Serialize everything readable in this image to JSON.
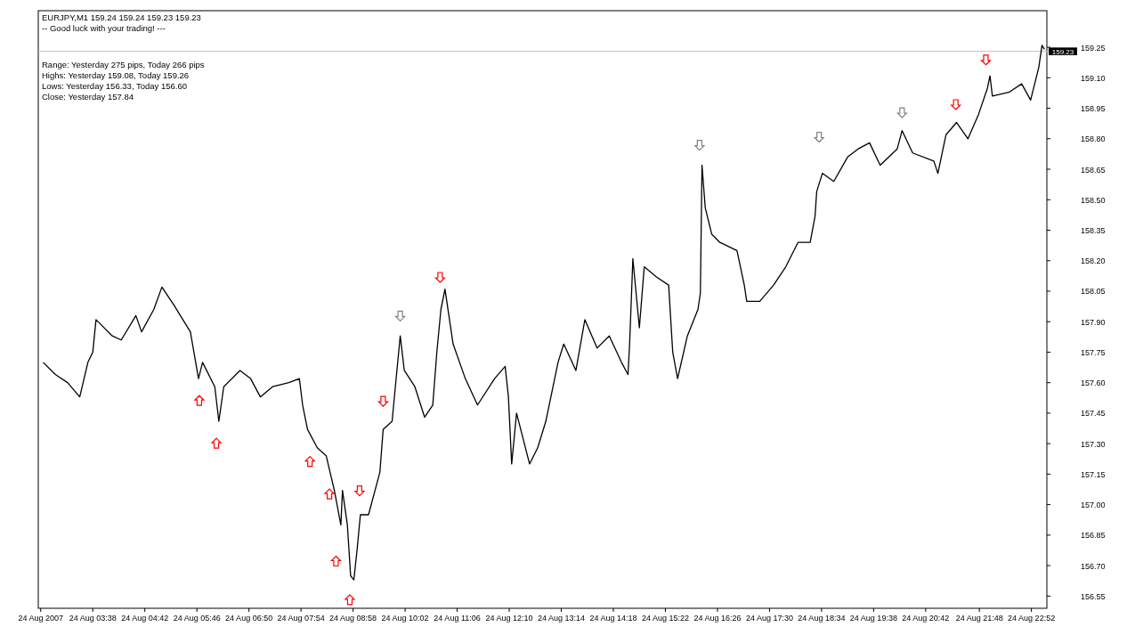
{
  "chart_data": {
    "type": "line",
    "title": "EURJPY,M1  159.24 159.24 159.23 159.23",
    "annotations": [
      "-- Good luck with your trading! ---",
      "Range: Yesterday 275 pips, Today 266 pips",
      "Highs: Yesterday 159.08, Today 159.26",
      "Lows:  Yesterday 156.33, Today 156.60",
      "Close: Yesterday 157.84"
    ],
    "xlim": [
      "2007-08-24T02:31",
      "2007-08-24T23:11"
    ],
    "ylim": [
      156.49,
      159.43
    ],
    "xticks": [
      {
        "value": "2007-08-24T02:34",
        "label": "24 Aug 2007"
      },
      {
        "value": "2007-08-24T03:38",
        "label": "24 Aug 03:38"
      },
      {
        "value": "2007-08-24T04:42",
        "label": "24 Aug 04:42"
      },
      {
        "value": "2007-08-24T05:46",
        "label": "24 Aug 05:46"
      },
      {
        "value": "2007-08-24T06:50",
        "label": "24 Aug 06:50"
      },
      {
        "value": "2007-08-24T07:54",
        "label": "24 Aug 07:54"
      },
      {
        "value": "2007-08-24T08:58",
        "label": "24 Aug 08:58"
      },
      {
        "value": "2007-08-24T10:02",
        "label": "24 Aug 10:02"
      },
      {
        "value": "2007-08-24T11:06",
        "label": "24 Aug 11:06"
      },
      {
        "value": "2007-08-24T12:10",
        "label": "24 Aug 12:10"
      },
      {
        "value": "2007-08-24T13:14",
        "label": "24 Aug 13:14"
      },
      {
        "value": "2007-08-24T14:18",
        "label": "24 Aug 14:18"
      },
      {
        "value": "2007-08-24T15:22",
        "label": "24 Aug 15:22"
      },
      {
        "value": "2007-08-24T16:26",
        "label": "24 Aug 16:26"
      },
      {
        "value": "2007-08-24T17:30",
        "label": "24 Aug 17:30"
      },
      {
        "value": "2007-08-24T18:34",
        "label": "24 Aug 18:34"
      },
      {
        "value": "2007-08-24T19:38",
        "label": "24 Aug 19:38"
      },
      {
        "value": "2007-08-24T20:42",
        "label": "24 Aug 20:42"
      },
      {
        "value": "2007-08-24T21:48",
        "label": "24 Aug 21:48"
      },
      {
        "value": "2007-08-24T22:52",
        "label": "24 Aug 22:52"
      }
    ],
    "yticks": [
      {
        "value": 156.55,
        "label": "156.55"
      },
      {
        "value": 156.7,
        "label": "156.70"
      },
      {
        "value": 156.85,
        "label": "156.85"
      },
      {
        "value": 157,
        "label": "157.00"
      },
      {
        "value": 157.15,
        "label": "157.15"
      },
      {
        "value": 157.3,
        "label": "157.30"
      },
      {
        "value": 157.45,
        "label": "157.45"
      },
      {
        "value": 157.6,
        "label": "157.60"
      },
      {
        "value": 157.75,
        "label": "157.75"
      },
      {
        "value": 157.9,
        "label": "157.90"
      },
      {
        "value": 158.05,
        "label": "158.05"
      },
      {
        "value": 158.2,
        "label": "158.20"
      },
      {
        "value": 158.35,
        "label": "158.35"
      },
      {
        "value": 158.5,
        "label": "158.50"
      },
      {
        "value": 158.65,
        "label": "158.65"
      },
      {
        "value": 158.8,
        "label": "158.80"
      },
      {
        "value": 158.95,
        "label": "158.95"
      },
      {
        "value": 159.1,
        "label": "159.10"
      },
      {
        "value": 159.25,
        "label": "159.25"
      }
    ],
    "grid": false,
    "ref_lines": [
      {
        "axis": "y",
        "value": 159.23,
        "label": "159.23",
        "color": "#c0c0c0"
      }
    ],
    "series": [
      {
        "color": "#000000",
        "x": [
          "2007-08-24T02:37",
          "2007-08-24T02:52",
          "2007-08-24T03:07",
          "2007-08-24T03:22",
          "2007-08-24T03:32",
          "2007-08-24T03:38",
          "2007-08-24T03:42",
          "2007-08-24T04:02",
          "2007-08-24T04:13",
          "2007-08-24T04:31",
          "2007-08-24T04:38",
          "2007-08-24T04:53",
          "2007-08-24T05:03",
          "2007-08-24T05:18",
          "2007-08-24T05:38",
          "2007-08-24T05:48",
          "2007-08-24T05:53",
          "2007-08-24T06:08",
          "2007-08-24T06:13",
          "2007-08-24T06:19",
          "2007-08-24T06:39",
          "2007-08-24T06:52",
          "2007-08-24T07:04",
          "2007-08-24T07:19",
          "2007-08-24T07:39",
          "2007-08-24T07:52",
          "2007-08-24T07:56",
          "2007-08-24T08:02",
          "2007-08-24T08:14",
          "2007-08-24T08:25",
          "2007-08-24T08:35",
          "2007-08-24T08:43",
          "2007-08-24T08:45",
          "2007-08-24T08:51",
          "2007-08-24T08:55",
          "2007-08-24T08:59",
          "2007-08-24T09:03",
          "2007-08-24T09:07",
          "2007-08-24T09:17",
          "2007-08-24T09:31",
          "2007-08-24T09:35",
          "2007-08-24T09:46",
          "2007-08-24T09:50",
          "2007-08-24T09:56",
          "2007-08-24T10:01",
          "2007-08-24T10:14",
          "2007-08-24T10:26",
          "2007-08-24T10:36",
          "2007-08-24T10:41",
          "2007-08-24T10:46",
          "2007-08-24T10:51",
          "2007-08-24T11:01",
          "2007-08-24T11:16",
          "2007-08-24T11:31",
          "2007-08-24T11:52",
          "2007-08-24T12:05",
          "2007-08-24T12:09",
          "2007-08-24T12:13",
          "2007-08-24T12:19",
          "2007-08-24T12:35",
          "2007-08-24T12:45",
          "2007-08-24T12:55",
          "2007-08-24T13:10",
          "2007-08-24T13:17",
          "2007-08-24T13:32",
          "2007-08-24T13:43",
          "2007-08-24T13:58",
          "2007-08-24T14:13",
          "2007-08-24T14:28",
          "2007-08-24T14:36",
          "2007-08-24T14:38",
          "2007-08-24T14:42",
          "2007-08-24T14:50",
          "2007-08-24T14:56",
          "2007-08-24T15:11",
          "2007-08-24T15:26",
          "2007-08-24T15:31",
          "2007-08-24T15:37",
          "2007-08-24T15:49",
          "2007-08-24T16:02",
          "2007-08-24T16:05",
          "2007-08-24T16:07",
          "2007-08-24T16:11",
          "2007-08-24T16:19",
          "2007-08-24T16:29",
          "2007-08-24T16:50",
          "2007-08-24T16:59",
          "2007-08-24T17:02",
          "2007-08-24T17:18",
          "2007-08-24T17:35",
          "2007-08-24T17:50",
          "2007-08-24T18:05",
          "2007-08-24T18:20",
          "2007-08-24T18:26",
          "2007-08-24T18:28",
          "2007-08-24T18:35",
          "2007-08-24T18:49",
          "2007-08-24T19:06",
          "2007-08-24T19:19",
          "2007-08-24T19:33",
          "2007-08-24T19:46",
          "2007-08-24T20:07",
          "2007-08-24T20:13",
          "2007-08-24T20:26",
          "2007-08-24T20:52",
          "2007-08-24T20:57",
          "2007-08-24T21:07",
          "2007-08-24T21:20",
          "2007-08-24T21:34",
          "2007-08-24T21:47",
          "2007-08-24T21:58",
          "2007-08-24T22:01",
          "2007-08-24T22:04",
          "2007-08-24T22:25",
          "2007-08-24T22:40",
          "2007-08-24T22:51",
          "2007-08-24T23:01",
          "2007-08-24T23:05",
          "2007-08-24T23:08"
        ],
        "values": [
          157.7,
          157.64,
          157.6,
          157.53,
          157.7,
          157.75,
          157.91,
          157.83,
          157.81,
          157.93,
          157.85,
          157.96,
          158.07,
          157.98,
          157.85,
          157.62,
          157.7,
          157.58,
          157.41,
          157.58,
          157.66,
          157.62,
          157.53,
          157.58,
          157.6,
          157.62,
          157.49,
          157.37,
          157.28,
          157.24,
          157.07,
          156.9,
          157.07,
          156.9,
          156.65,
          156.63,
          156.78,
          156.95,
          156.95,
          157.16,
          157.37,
          157.41,
          157.58,
          157.83,
          157.66,
          157.58,
          157.43,
          157.49,
          157.75,
          157.96,
          158.06,
          157.79,
          157.62,
          157.49,
          157.62,
          157.68,
          157.53,
          157.2,
          157.45,
          157.2,
          157.28,
          157.41,
          157.7,
          157.79,
          157.66,
          157.91,
          157.77,
          157.83,
          157.7,
          157.64,
          157.79,
          158.21,
          157.87,
          158.17,
          158.12,
          158.08,
          157.75,
          157.62,
          157.83,
          157.96,
          158.04,
          158.67,
          158.46,
          158.33,
          158.29,
          158.25,
          158.08,
          158.0,
          158.0,
          158.08,
          158.17,
          158.29,
          158.29,
          158.42,
          158.54,
          158.63,
          158.59,
          158.71,
          158.75,
          158.78,
          158.67,
          158.75,
          158.84,
          158.73,
          158.69,
          158.63,
          158.82,
          158.88,
          158.8,
          158.92,
          159.05,
          159.11,
          159.01,
          159.03,
          159.07,
          158.99,
          159.15,
          159.26,
          159.24
        ]
      },
      {
        "type": "scatter",
        "marker": "triangle",
        "x": [
          "2007-08-24T05:49",
          "2007-08-24T06:10",
          "2007-08-24T08:05",
          "2007-08-24T08:29",
          "2007-08-24T08:37",
          "2007-08-24T08:54"
        ],
        "values": [
          157.51,
          157.3,
          157.21,
          157.05,
          156.72,
          156.53
        ],
        "colors": [
          "#ff0000",
          "#ff0000",
          "#ff0000",
          "#ff0000",
          "#ff0000",
          "#ff0000"
        ]
      },
      {
        "type": "scatter",
        "marker": "triangle",
        "x": [
          "2007-08-24T09:06",
          "2007-08-24T09:35",
          "2007-08-24T09:56",
          "2007-08-24T10:45",
          "2007-08-24T16:04",
          "2007-08-24T18:31",
          "2007-08-24T20:13",
          "2007-08-24T21:19",
          "2007-08-24T21:56"
        ],
        "values": [
          157.07,
          157.51,
          157.93,
          158.12,
          158.77,
          158.81,
          158.93,
          158.97,
          159.19
        ],
        "colors": [
          "#ff0000",
          "#ff0000",
          "#808080",
          "#ff0000",
          "#808080",
          "#808080",
          "#808080",
          "#ff0000",
          "#ff0000"
        ]
      }
    ]
  }
}
